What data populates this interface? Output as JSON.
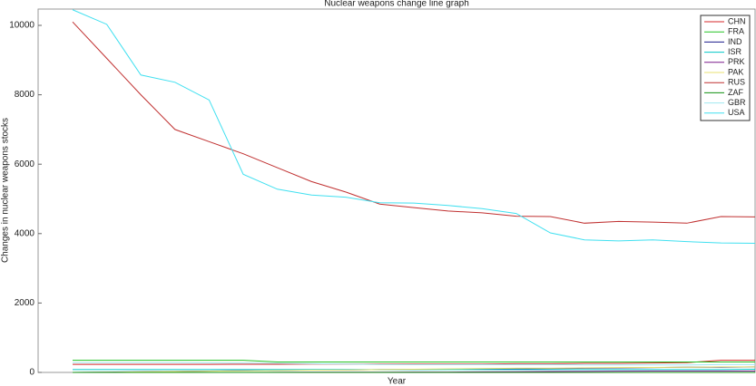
{
  "chart_data": {
    "type": "line",
    "title": "Nuclear weapons change line graph",
    "x_label": "Year",
    "y_label": "Changes in nuclear weapons stocks",
    "categories": [
      null,
      null,
      null,
      null,
      null,
      null,
      null,
      null,
      null,
      null,
      null,
      null,
      null,
      null,
      null,
      null,
      null,
      null,
      null,
      null,
      null
    ],
    "ylim": [
      0,
      10470
    ],
    "yticks": [
      0,
      2000,
      4000,
      6000,
      8000,
      10000
    ],
    "legend": "upper-right",
    "series": [
      {
        "name": "CHN",
        "color": "#d62728",
        "values": [
          232,
          232,
          232,
          232,
          232,
          235,
          235,
          240,
          240,
          240,
          240,
          240,
          240,
          250,
          250,
          260,
          260,
          270,
          280,
          350,
          350
        ]
      },
      {
        "name": "FRA",
        "color": "#22c222",
        "values": [
          350,
          350,
          350,
          350,
          350,
          350,
          300,
          300,
          300,
          300,
          300,
          300,
          300,
          300,
          300,
          300,
          300,
          300,
          300,
          300,
          300
        ]
      },
      {
        "name": "IND",
        "color": "#1a1a8c",
        "values": [
          0,
          10,
          20,
          30,
          40,
          50,
          60,
          70,
          70,
          80,
          80,
          90,
          90,
          100,
          110,
          120,
          130,
          140,
          150,
          150,
          160
        ]
      },
      {
        "name": "ISR",
        "color": "#00c8c8",
        "values": [
          80,
          80,
          80,
          80,
          80,
          80,
          80,
          80,
          80,
          80,
          80,
          80,
          80,
          80,
          80,
          80,
          80,
          80,
          80,
          80,
          90
        ]
      },
      {
        "name": "PRK",
        "color": "#7a1a8c",
        "values": [
          0,
          0,
          0,
          0,
          0,
          0,
          2,
          5,
          6,
          8,
          10,
          10,
          15,
          20,
          25,
          30,
          35,
          40,
          40,
          40,
          40
        ]
      },
      {
        "name": "PAK",
        "color": "#e8e070",
        "values": [
          0,
          5,
          15,
          25,
          35,
          45,
          55,
          65,
          70,
          80,
          90,
          100,
          110,
          120,
          120,
          130,
          140,
          145,
          150,
          160,
          160
        ]
      },
      {
        "name": "RUS",
        "color": "#c03030",
        "values": [
          10100,
          9050,
          8000,
          7000,
          6650,
          6300,
          5900,
          5500,
          5200,
          4850,
          4750,
          4650,
          4600,
          4500,
          4490,
          4300,
          4350,
          4330,
          4300,
          4490,
          4480
        ]
      },
      {
        "name": "ZAF",
        "color": "#109010",
        "values": [
          0,
          0,
          0,
          0,
          0,
          0,
          0,
          0,
          0,
          0,
          0,
          0,
          0,
          0,
          0,
          0,
          0,
          0,
          0,
          0,
          0
        ]
      },
      {
        "name": "GBR",
        "color": "#a0e8f0",
        "values": [
          280,
          280,
          280,
          280,
          275,
          270,
          260,
          250,
          240,
          230,
          225,
          225,
          225,
          225,
          225,
          215,
          215,
          215,
          215,
          225,
          225
        ]
      },
      {
        "name": "USA",
        "color": "#40e0f0",
        "values": [
          10450,
          10030,
          8570,
          8360,
          7850,
          5710,
          5280,
          5110,
          5050,
          4890,
          4880,
          4810,
          4720,
          4580,
          4020,
          3820,
          3790,
          3820,
          3770,
          3730,
          3720
        ]
      }
    ]
  }
}
